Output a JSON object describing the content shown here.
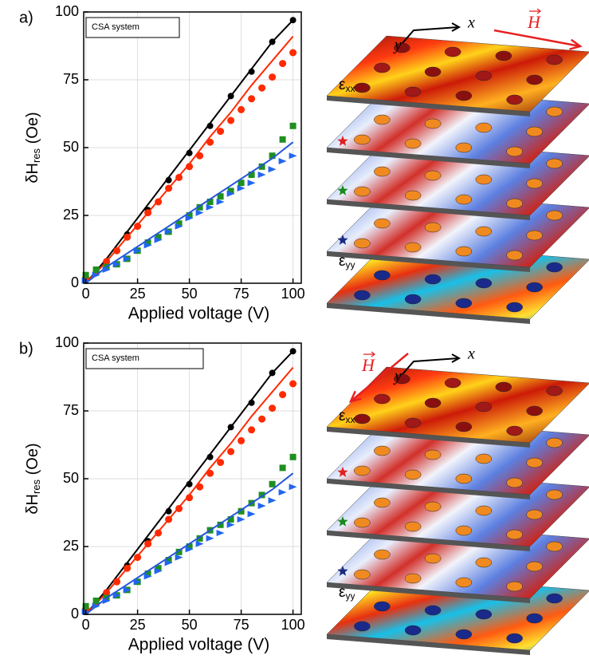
{
  "chart_data": [
    {
      "type": "scatter",
      "panel": "a)",
      "legend_text": "CSA system",
      "xlabel": "Applied voltage (V)",
      "ylabel_parts": [
        "δH",
        "res",
        " (Oe)"
      ],
      "xlim": [
        -1,
        104
      ],
      "ylim": [
        0,
        100
      ],
      "xticks": [
        0,
        25,
        50,
        75,
        100
      ],
      "yticks": [
        0,
        25,
        50,
        75,
        100
      ],
      "grid": true,
      "diagram": {
        "x_axis": "x",
        "y_axis": "y",
        "field": "H",
        "strain_xx": [
          "ε",
          "xx"
        ],
        "strain_yy": [
          "ε",
          "yy"
        ],
        "field_direction": "x"
      },
      "series": [
        {
          "color": "#000000",
          "marker": "circle",
          "x": [
            10,
            20,
            30,
            40,
            50,
            60,
            70,
            80,
            90,
            100
          ],
          "values": [
            7,
            18,
            27,
            38,
            48,
            58,
            69,
            78,
            89,
            97
          ]
        },
        {
          "color": "#000000",
          "marker": "line",
          "x": [
            0,
            10,
            20,
            30,
            40,
            50,
            60,
            70,
            80,
            90,
            100
          ],
          "values": [
            0,
            9,
            19,
            29,
            39,
            49,
            59,
            69,
            79,
            89,
            97
          ]
        },
        {
          "color": "#ff2a00",
          "marker": "circle",
          "x": [
            0,
            5,
            10,
            15,
            20,
            25,
            30,
            35,
            40,
            45,
            50,
            55,
            60,
            65,
            70,
            75,
            80,
            85,
            90,
            95,
            100
          ],
          "values": [
            2,
            4,
            8,
            12,
            17,
            21,
            26,
            30,
            35,
            39,
            43,
            47,
            52,
            56,
            60,
            64,
            68,
            72,
            76,
            81,
            85
          ]
        },
        {
          "color": "#ff2a00",
          "marker": "line",
          "x": [
            0,
            10,
            20,
            30,
            40,
            50,
            60,
            70,
            80,
            90,
            100
          ],
          "values": [
            0,
            8,
            17,
            26,
            35,
            44,
            54,
            63,
            73,
            82,
            91
          ]
        },
        {
          "color": "#1f8f1f",
          "marker": "square",
          "x": [
            0,
            5,
            10,
            15,
            20,
            25,
            30,
            35,
            40,
            45,
            50,
            55,
            60,
            65,
            70,
            75,
            80,
            85,
            90,
            95,
            100
          ],
          "values": [
            3,
            5,
            6,
            7,
            9,
            12,
            15,
            17,
            19,
            22,
            25,
            28,
            30,
            32,
            34,
            37,
            40,
            43,
            47,
            53,
            58
          ]
        },
        {
          "color": "#2255dd",
          "marker": "line",
          "x": [
            0,
            10,
            20,
            30,
            40,
            50,
            60,
            70,
            80,
            90,
            100
          ],
          "values": [
            0,
            6,
            11,
            16,
            21,
            26,
            31,
            36,
            41,
            46,
            52
          ]
        },
        {
          "color": "#2266ee",
          "marker": "triangle",
          "x": [
            0,
            5,
            10,
            15,
            20,
            25,
            30,
            35,
            40,
            45,
            50,
            55,
            60,
            65,
            70,
            75,
            80,
            85,
            90,
            95,
            100
          ],
          "values": [
            1,
            3,
            5,
            7,
            9,
            12,
            14,
            16,
            19,
            21,
            24,
            26,
            28,
            30,
            33,
            35,
            37,
            40,
            42,
            45,
            47
          ]
        }
      ]
    },
    {
      "type": "scatter",
      "panel": "b)",
      "legend_text": "CSA system",
      "xlabel": "Applied voltage (V)",
      "ylabel_parts": [
        "δH",
        "res",
        " (Oe)"
      ],
      "xlim": [
        -1,
        104
      ],
      "ylim": [
        0,
        100
      ],
      "xticks": [
        0,
        25,
        50,
        75,
        100
      ],
      "yticks": [
        0,
        25,
        50,
        75,
        100
      ],
      "grid": true,
      "diagram": {
        "x_axis": "x",
        "y_axis": "y",
        "field": "H",
        "strain_xx": [
          "ε",
          "xx"
        ],
        "strain_yy": [
          "ε",
          "yy"
        ],
        "field_direction": "y"
      },
      "series": [
        {
          "color": "#000000",
          "marker": "circle",
          "x": [
            10,
            20,
            30,
            40,
            50,
            60,
            70,
            80,
            90,
            100
          ],
          "values": [
            7,
            18,
            27,
            38,
            48,
            58,
            69,
            78,
            89,
            97
          ]
        },
        {
          "color": "#000000",
          "marker": "line",
          "x": [
            0,
            10,
            20,
            30,
            40,
            50,
            60,
            70,
            80,
            90,
            100
          ],
          "values": [
            0,
            9,
            19,
            29,
            39,
            49,
            59,
            69,
            79,
            89,
            97
          ]
        },
        {
          "color": "#ff2a00",
          "marker": "circle",
          "x": [
            0,
            5,
            10,
            15,
            20,
            25,
            30,
            35,
            40,
            45,
            50,
            55,
            60,
            65,
            70,
            75,
            80,
            85,
            90,
            95,
            100
          ],
          "values": [
            2,
            4,
            8,
            12,
            17,
            21,
            26,
            30,
            35,
            39,
            43,
            47,
            52,
            56,
            60,
            64,
            68,
            72,
            76,
            81,
            85
          ]
        },
        {
          "color": "#ff2a00",
          "marker": "line",
          "x": [
            0,
            10,
            20,
            30,
            40,
            50,
            60,
            70,
            80,
            90,
            100
          ],
          "values": [
            0,
            8,
            17,
            26,
            35,
            44,
            54,
            63,
            73,
            82,
            91
          ]
        },
        {
          "color": "#1f8f1f",
          "marker": "square",
          "x": [
            0,
            5,
            10,
            15,
            20,
            25,
            30,
            35,
            40,
            45,
            50,
            55,
            60,
            65,
            70,
            75,
            80,
            85,
            90,
            95,
            100
          ],
          "values": [
            3,
            5,
            6,
            7,
            9,
            12,
            15,
            17,
            20,
            23,
            25,
            28,
            31,
            33,
            35,
            38,
            41,
            44,
            48,
            54,
            58
          ]
        },
        {
          "color": "#2255dd",
          "marker": "line",
          "x": [
            0,
            10,
            20,
            30,
            40,
            50,
            60,
            70,
            80,
            90,
            100
          ],
          "values": [
            0,
            6,
            11,
            16,
            21,
            26,
            31,
            36,
            41,
            46,
            52
          ]
        },
        {
          "color": "#2266ee",
          "marker": "triangle",
          "x": [
            0,
            5,
            10,
            15,
            20,
            25,
            30,
            35,
            40,
            45,
            50,
            55,
            60,
            65,
            70,
            75,
            80,
            85,
            90,
            95,
            100
          ],
          "values": [
            1,
            3,
            5,
            7,
            9,
            12,
            14,
            16,
            19,
            21,
            24,
            26,
            28,
            30,
            33,
            35,
            37,
            40,
            42,
            45,
            47
          ]
        }
      ]
    }
  ]
}
